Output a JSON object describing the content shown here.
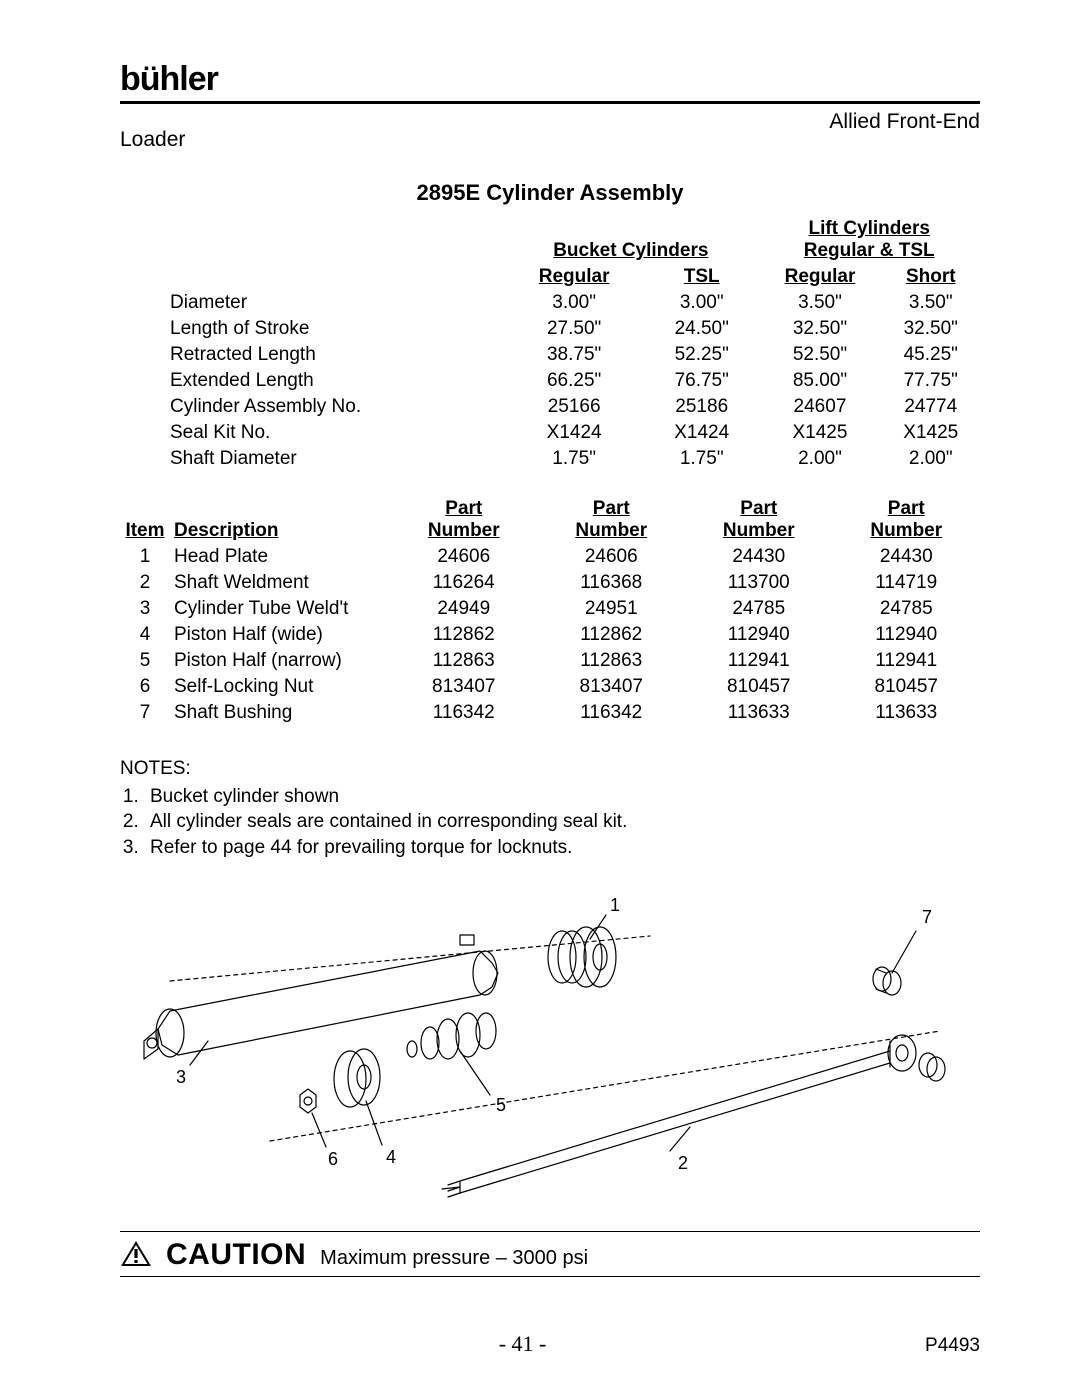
{
  "brand": "bühler",
  "header": {
    "right": "Allied Front-End",
    "left": "Loader"
  },
  "title": "2895E Cylinder Assembly",
  "group_heads": {
    "bucket": "Bucket Cylinders",
    "lift_line1": "Lift Cylinders",
    "lift_line2": "Regular & TSL"
  },
  "col_heads": {
    "reg1": "Regular",
    "tsl": "TSL",
    "reg2": "Regular",
    "short": "Short"
  },
  "spec_rows": [
    {
      "label": "Diameter",
      "c1": "3.00\"",
      "c2": "3.00\"",
      "c3": "3.50\"",
      "c4": "3.50\""
    },
    {
      "label": "Length of Stroke",
      "c1": "27.50\"",
      "c2": "24.50\"",
      "c3": "32.50\"",
      "c4": "32.50\""
    },
    {
      "label": "Retracted Length",
      "c1": "38.75\"",
      "c2": "52.25\"",
      "c3": "52.50\"",
      "c4": "45.25\""
    },
    {
      "label": "Extended Length",
      "c1": "66.25\"",
      "c2": "76.75\"",
      "c3": "85.00\"",
      "c4": "77.75\""
    },
    {
      "label": "Cylinder Assembly No.",
      "c1": "25166",
      "c2": "25186",
      "c3": "24607",
      "c4": "24774"
    },
    {
      "label": "Seal Kit No.",
      "c1": "X1424",
      "c2": "X1424",
      "c3": "X1425",
      "c4": "X1425"
    },
    {
      "label": "Shaft Diameter",
      "c1": "1.75\"",
      "c2": "1.75\"",
      "c3": "2.00\"",
      "c4": "2.00\""
    }
  ],
  "parts_head": {
    "item": "Item",
    "desc": "Description",
    "pn1": "Part",
    "pn2": "Number"
  },
  "parts_rows": [
    {
      "n": "1",
      "desc": "Head Plate",
      "c1": "24606",
      "c2": "24606",
      "c3": "24430",
      "c4": "24430"
    },
    {
      "n": "2",
      "desc": "Shaft Weldment",
      "c1": "116264",
      "c2": "116368",
      "c3": "113700",
      "c4": "114719"
    },
    {
      "n": "3",
      "desc": "Cylinder Tube Weld't",
      "c1": "24949",
      "c2": "24951",
      "c3": "24785",
      "c4": "24785"
    },
    {
      "n": "4",
      "desc": "Piston Half (wide)",
      "c1": "112862",
      "c2": "112862",
      "c3": "112940",
      "c4": "112940"
    },
    {
      "n": "5",
      "desc": "Piston Half (narrow)",
      "c1": "112863",
      "c2": "112863",
      "c3": "112941",
      "c4": "112941"
    },
    {
      "n": "6",
      "desc": "Self-Locking Nut",
      "c1": "813407",
      "c2": "813407",
      "c3": "810457",
      "c4": "810457"
    },
    {
      "n": "7",
      "desc": "Shaft Bushing",
      "c1": "116342",
      "c2": "116342",
      "c3": "113633",
      "c4": "113633"
    }
  ],
  "notes": {
    "head": "NOTES:",
    "items": [
      "Bucket cylinder shown",
      "All cylinder seals are contained in corresponding seal kit.",
      "Refer to page 44 for prevailing torque for locknuts."
    ]
  },
  "diagram": {
    "callouts": {
      "c1": "1",
      "c2": "2",
      "c3": "3",
      "c4": "4",
      "c5": "5",
      "c6": "6",
      "c7": "7"
    },
    "stroke": "#000000",
    "stroke_width": 1.2,
    "dash": "4 4"
  },
  "caution": {
    "word": "CAUTION",
    "text": "Maximum pressure – 3000 psi"
  },
  "footer": {
    "page": "- 41 -",
    "doc": "P4493"
  }
}
